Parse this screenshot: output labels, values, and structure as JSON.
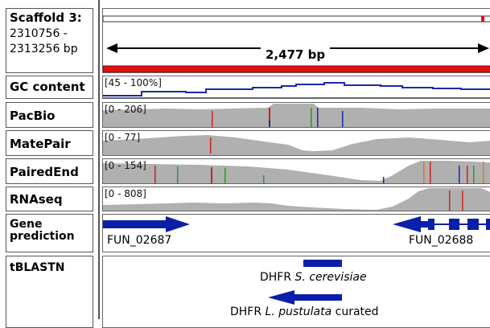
{
  "ruler": {
    "title": "Scaffold 3:",
    "range_line1": "2310756 -",
    "range_line2": "2313256 bp",
    "span_label": "2,477 bp"
  },
  "tracks": {
    "gc": {
      "name": "GC content",
      "range": "[45 - 100%]"
    },
    "pacbio": {
      "name": "PacBio",
      "range": "[0 - 206]"
    },
    "matepair": {
      "name": "MatePair",
      "range": "[0 - 77]"
    },
    "pairedend": {
      "name": "PairedEnd",
      "range": "[0 - 154]"
    },
    "rnaseq": {
      "name": "RNAseq",
      "range": "[0 - 808]"
    }
  },
  "genes": {
    "name_line1": "Gene",
    "name_line2": "prediction",
    "gene1": "FUN_02687",
    "gene2": "FUN_02688"
  },
  "blast": {
    "name": "tBLASTN",
    "hit1_prefix": "DHFR ",
    "hit1_species": "S. cerevisiae",
    "hit2_prefix": "DHFR ",
    "hit2_species": "L. pustulata",
    "hit2_suffix": " curated"
  },
  "colors": {
    "coverage": "#b0b0b0",
    "feature": "#0a1fa8",
    "ruler_bar": "#e01010",
    "gc_line": "#1b2aa8"
  }
}
